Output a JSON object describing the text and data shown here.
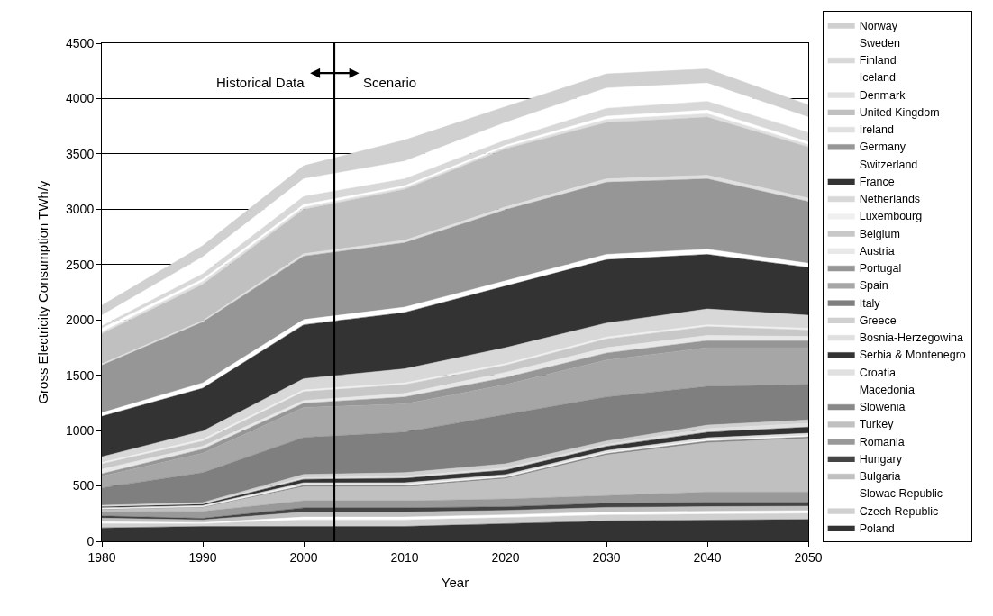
{
  "chart_data": {
    "type": "area",
    "stacked": true,
    "xlabel": "Year",
    "ylabel": "Gross Electricity Consumption TWh/y",
    "x": [
      1980,
      1990,
      2000,
      2010,
      2020,
      2030,
      2040,
      2050
    ],
    "xlim": [
      1980,
      2050
    ],
    "xticks": [
      1980,
      1990,
      2000,
      2010,
      2020,
      2030,
      2040,
      2050
    ],
    "ylim": [
      0,
      4500
    ],
    "yticks": [
      0,
      500,
      1000,
      1500,
      2000,
      2500,
      3000,
      3500,
      4000,
      4500
    ],
    "grid": "y",
    "legend": "right",
    "ref_lines": [
      {
        "axis": "x",
        "value": 2003,
        "color": "#000000"
      }
    ],
    "annotations": [
      "Historical Data",
      "Scenario"
    ],
    "series": [
      {
        "name": "Poland",
        "color": "#333333",
        "values": [
          121,
          134,
          134,
          134,
          159,
          184,
          191,
          197
        ]
      },
      {
        "name": "Czech Republic",
        "color": "#d0d0d0",
        "values": [
          40,
          25,
          60,
          60,
          55,
          55,
          55,
          55
        ]
      },
      {
        "name": "Slowac Republic",
        "color": "#ffffff",
        "values": [
          15,
          10,
          25,
          25,
          25,
          25,
          25,
          25
        ]
      },
      {
        "name": "Bulgaria",
        "color": "#c0c0c0",
        "values": [
          33,
          25,
          45,
          45,
          40,
          42,
          42,
          40
        ]
      },
      {
        "name": "Hungary",
        "color": "#444444",
        "values": [
          20,
          13,
          38,
          38,
          33,
          37,
          37,
          33
        ]
      },
      {
        "name": "Romania",
        "color": "#999999",
        "values": [
          35,
          63,
          64,
          64,
          70,
          70,
          95,
          95
        ]
      },
      {
        "name": "Turkey",
        "color": "#c0c0c0",
        "values": [
          22,
          35,
          127,
          127,
          184,
          366,
          445,
          484
        ]
      },
      {
        "name": "Slowenia",
        "color": "#888888",
        "values": [
          5,
          5,
          12,
          12,
          12,
          15,
          15,
          15
        ]
      },
      {
        "name": "Macedonia",
        "color": "#ffffff",
        "values": [
          4,
          5,
          8,
          8,
          8,
          8,
          10,
          10
        ]
      },
      {
        "name": "Croatia",
        "color": "#e0e0e0",
        "values": [
          8,
          8,
          16,
          16,
          17,
          18,
          20,
          22
        ]
      },
      {
        "name": "Serbia & Montenegro",
        "color": "#333333",
        "values": [
          10,
          12,
          31,
          40,
          40,
          37,
          50,
          55
        ]
      },
      {
        "name": "Bosnia-Herzegowina",
        "color": "#e0e0e0",
        "values": [
          4,
          5,
          16,
          19,
          20,
          17,
          32,
          34
        ]
      },
      {
        "name": "Greece",
        "color": "#d0d0d0",
        "values": [
          8,
          10,
          28,
          32,
          37,
          32,
          32,
          32
        ]
      },
      {
        "name": "Italy",
        "color": "#7f7f7f",
        "values": [
          158,
          270,
          334,
          366,
          445,
          398,
          350,
          318
        ]
      },
      {
        "name": "Spain",
        "color": "#a6a6a6",
        "values": [
          105,
          175,
          270,
          254,
          270,
          334,
          350,
          334
        ]
      },
      {
        "name": "Portugal",
        "color": "#969696",
        "values": [
          22,
          38,
          39,
          64,
          64,
          63,
          64,
          64
        ]
      },
      {
        "name": "Austria",
        "color": "#e8e8e8",
        "values": [
          42,
          26,
          25,
          32,
          47,
          48,
          47,
          38
        ]
      },
      {
        "name": "Belgium",
        "color": "#c8c8c8",
        "values": [
          48,
          47,
          80,
          80,
          64,
          80,
          80,
          58
        ]
      },
      {
        "name": "Luxembourg",
        "color": "#f0f0f0",
        "values": [
          12,
          16,
          15,
          15,
          16,
          16,
          16,
          16
        ]
      },
      {
        "name": "Netherlands",
        "color": "#d8d8d8",
        "values": [
          51,
          73,
          102,
          127,
          143,
          127,
          143,
          117
        ]
      },
      {
        "name": "France",
        "color": "#333333",
        "values": [
          366,
          388,
          487,
          509,
          557,
          572,
          493,
          432
        ]
      },
      {
        "name": "Switzerland",
        "color": "#ffffff",
        "values": [
          32,
          48,
          47,
          48,
          47,
          48,
          47,
          38
        ]
      },
      {
        "name": "Germany",
        "color": "#969696",
        "values": [
          429,
          550,
          573,
          582,
          643,
          652,
          636,
          557
        ]
      },
      {
        "name": "Ireland",
        "color": "#e0e0e0",
        "values": [
          13,
          13,
          22,
          22,
          25,
          31,
          32,
          32
        ]
      },
      {
        "name": "United Kingdom",
        "color": "#c0c0c0",
        "values": [
          273,
          327,
          401,
          461,
          525,
          509,
          525,
          461
        ]
      },
      {
        "name": "Denmark",
        "color": "#e0e0e0",
        "values": [
          16,
          26,
          20,
          16,
          16,
          28,
          32,
          23
        ]
      },
      {
        "name": "Iceland",
        "color": "#ffffff",
        "values": [
          32,
          22,
          24,
          16,
          16,
          29,
          32,
          24
        ]
      },
      {
        "name": "Finland",
        "color": "#d8d8d8",
        "values": [
          22,
          48,
          73,
          63,
          47,
          71,
          79,
          86
        ]
      },
      {
        "name": "Sweden",
        "color": "#ffffff",
        "values": [
          96,
          153,
          159,
          159,
          159,
          184,
          165,
          137
        ]
      },
      {
        "name": "Norway",
        "color": "#d0d0d0",
        "values": [
          89,
          101,
          118,
          191,
          143,
          127,
          128,
          111
        ]
      }
    ]
  }
}
